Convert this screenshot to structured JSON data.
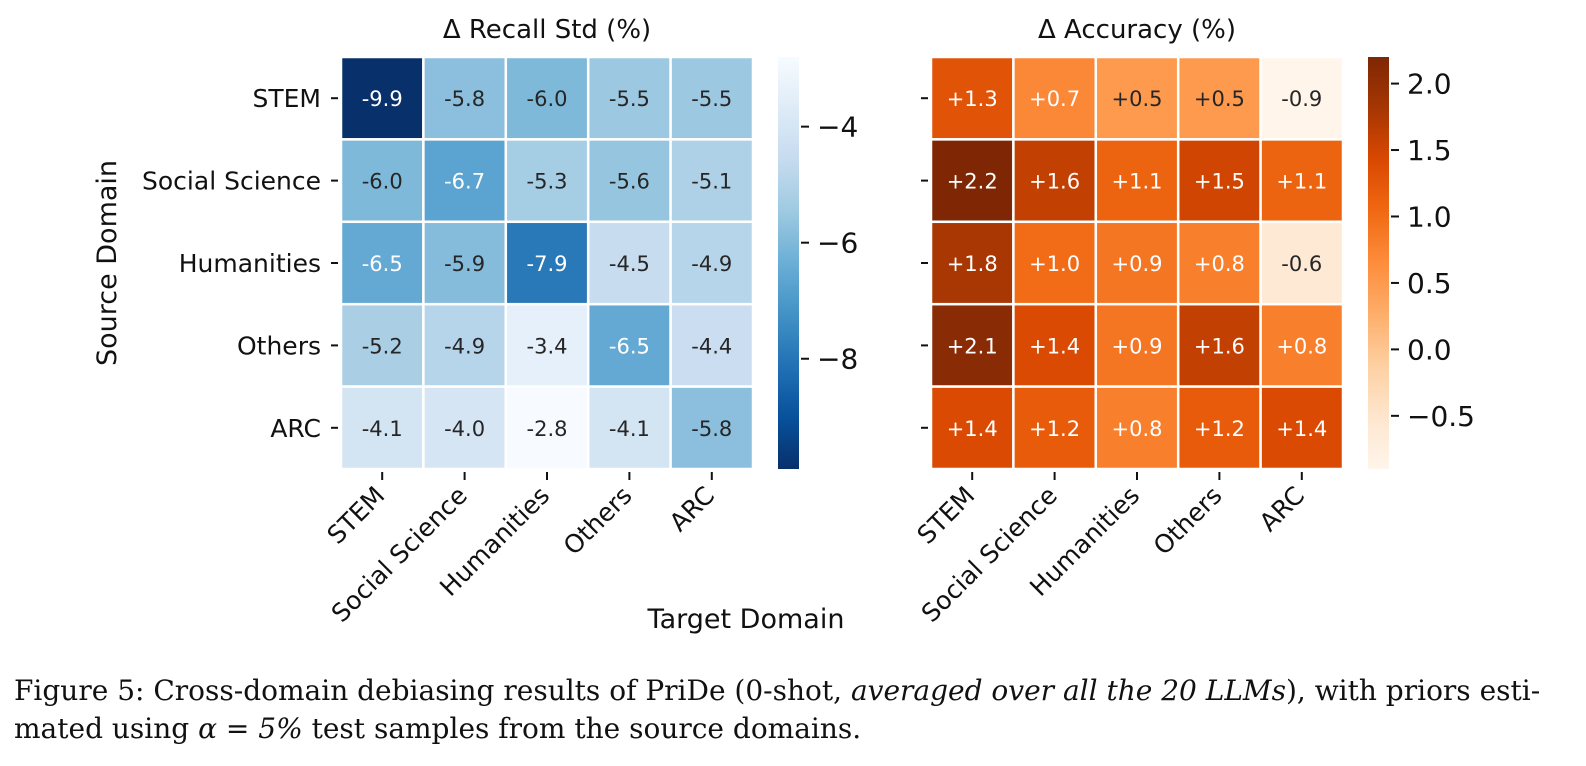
{
  "chart_data": [
    {
      "type": "heatmap",
      "title": "Δ Recall Std (%)",
      "xlabel": "Target Domain",
      "ylabel": "Source Domain",
      "rows": [
        "STEM",
        "Social Science",
        "Humanities",
        "Others",
        "ARC"
      ],
      "cols": [
        "STEM",
        "Social Science",
        "Humanities",
        "Others",
        "ARC"
      ],
      "values": [
        [
          -9.9,
          -5.8,
          -6.0,
          -5.5,
          -5.5
        ],
        [
          -6.0,
          -6.7,
          -5.3,
          -5.6,
          -5.1
        ],
        [
          -6.5,
          -5.9,
          -7.9,
          -4.5,
          -4.9
        ],
        [
          -5.2,
          -4.9,
          -3.4,
          -6.5,
          -4.4
        ],
        [
          -4.1,
          -4.0,
          -2.8,
          -4.1,
          -5.8
        ]
      ],
      "labels": [
        [
          "-9.9",
          "-5.8",
          "-6.0",
          "-5.5",
          "-5.5"
        ],
        [
          "-6.0",
          "-6.7",
          "-5.3",
          "-5.6",
          "-5.1"
        ],
        [
          "-6.5",
          "-5.9",
          "-7.9",
          "-4.5",
          "-4.9"
        ],
        [
          "-5.2",
          "-4.9",
          "-3.4",
          "-6.5",
          "-4.4"
        ],
        [
          "-4.1",
          "-4.0",
          "-2.8",
          "-4.1",
          "-5.8"
        ]
      ],
      "colormap": "Blues_r",
      "vmin": -9.9,
      "vmax": -2.8,
      "colorbar_ticks": [
        -4,
        -6,
        -8
      ],
      "colorbar_tick_labels": [
        "−4",
        "−6",
        "−8"
      ]
    },
    {
      "type": "heatmap",
      "title": "Δ Accuracy (%)",
      "xlabel": "",
      "ylabel": "",
      "rows": [
        "STEM",
        "Social Science",
        "Humanities",
        "Others",
        "ARC"
      ],
      "cols": [
        "STEM",
        "Social Science",
        "Humanities",
        "Others",
        "ARC"
      ],
      "values": [
        [
          1.3,
          0.7,
          0.5,
          0.5,
          -0.9
        ],
        [
          2.2,
          1.6,
          1.1,
          1.5,
          1.1
        ],
        [
          1.8,
          1.0,
          0.9,
          0.8,
          -0.6
        ],
        [
          2.1,
          1.4,
          0.9,
          1.6,
          0.8
        ],
        [
          1.4,
          1.2,
          0.8,
          1.2,
          1.4
        ]
      ],
      "labels": [
        [
          "+1.3",
          "+0.7",
          "+0.5",
          "+0.5",
          "-0.9"
        ],
        [
          "+2.2",
          "+1.6",
          "+1.1",
          "+1.5",
          "+1.1"
        ],
        [
          "+1.8",
          "+1.0",
          "+0.9",
          "+0.8",
          "-0.6"
        ],
        [
          "+2.1",
          "+1.4",
          "+0.9",
          "+1.6",
          "+0.8"
        ],
        [
          "+1.4",
          "+1.2",
          "+0.8",
          "+1.2",
          "+1.4"
        ]
      ],
      "colormap": "Oranges",
      "vmin": -0.9,
      "vmax": 2.2,
      "colorbar_ticks": [
        2.0,
        1.5,
        1.0,
        0.5,
        0.0,
        -0.5
      ],
      "colorbar_tick_labels": [
        "2.0",
        "1.5",
        "1.0",
        "0.5",
        "0.0",
        "−0.5"
      ]
    }
  ],
  "caption": {
    "prefix": "Figure 5: Cross-domain debiasing results of PriDe (0-shot, ",
    "italic": "averaged over all the 20 LLMs",
    "middle": "), with priors esti-mated using ",
    "math": "α = 5%",
    "suffix": " test samples from the source domains."
  },
  "colors": {
    "blue_dark": "#08306b",
    "blue_light": "#f7fbff",
    "orange_dark": "#7f2704",
    "orange_light": "#fff5eb",
    "grid_line": "#ffffff",
    "text_dark": "#262626"
  }
}
